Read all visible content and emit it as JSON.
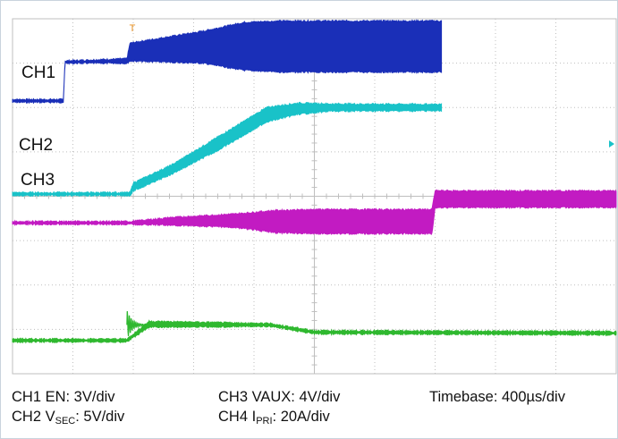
{
  "chart_data": {
    "type": "line",
    "title": "",
    "grid": true,
    "grid_divisions": {
      "x": 10,
      "y": 8
    },
    "x_unit": "div",
    "y_unit": "div",
    "xlim": [
      0,
      10
    ],
    "ylim": [
      0,
      8
    ],
    "trigger_marker": "T",
    "series": [
      {
        "name": "CH1",
        "color": "#1a2fb8",
        "envelope": [
          {
            "x": 0.0,
            "lo": 6.12,
            "hi": 6.18
          },
          {
            "x": 1.6,
            "lo": 6.12,
            "hi": 6.18
          },
          {
            "x": 1.65,
            "lo": 7.0,
            "hi": 7.05
          },
          {
            "x": 3.6,
            "lo": 7.0,
            "hi": 7.1
          },
          {
            "x": 3.7,
            "lo": 7.05,
            "hi": 7.45
          },
          {
            "x": 6.0,
            "lo": 7.0,
            "hi": 7.72
          },
          {
            "x": 7.3,
            "lo": 6.84,
            "hi": 7.92
          },
          {
            "x": 8.5,
            "lo": 6.8,
            "hi": 7.95
          },
          {
            "x": 13.5,
            "lo": 6.8,
            "hi": 7.95
          }
        ]
      },
      {
        "name": "CH2",
        "color": "#19c2c8",
        "envelope": [
          {
            "x": 0.0,
            "lo": 4.02,
            "hi": 4.08
          },
          {
            "x": 3.7,
            "lo": 4.02,
            "hi": 4.08
          },
          {
            "x": 3.8,
            "lo": 4.12,
            "hi": 4.3
          },
          {
            "x": 5.0,
            "lo": 4.5,
            "hi": 4.7
          },
          {
            "x": 6.5,
            "lo": 5.05,
            "hi": 5.35
          },
          {
            "x": 8.0,
            "lo": 5.68,
            "hi": 6.0
          },
          {
            "x": 9.0,
            "lo": 5.85,
            "hi": 6.1
          },
          {
            "x": 10.0,
            "lo": 5.92,
            "hi": 6.08
          },
          {
            "x": 13.5,
            "lo": 5.93,
            "hi": 6.07
          }
        ]
      },
      {
        "name": "CH3",
        "color": "#c21bc2",
        "envelope": [
          {
            "x": 0.0,
            "lo": 3.37,
            "hi": 3.43
          },
          {
            "x": 3.7,
            "lo": 3.37,
            "hi": 3.43
          },
          {
            "x": 5.0,
            "lo": 3.35,
            "hi": 3.52
          },
          {
            "x": 7.0,
            "lo": 3.3,
            "hi": 3.6
          },
          {
            "x": 8.3,
            "lo": 3.18,
            "hi": 3.68
          },
          {
            "x": 9.5,
            "lo": 3.16,
            "hi": 3.7
          },
          {
            "x": 13.2,
            "lo": 3.16,
            "hi": 3.7
          },
          {
            "x": 13.3,
            "lo": 3.75,
            "hi": 4.12
          },
          {
            "x": 19.0,
            "lo": 3.75,
            "hi": 4.12
          }
        ]
      },
      {
        "name": "CH4",
        "color": "#2fb82f",
        "envelope": [
          {
            "x": 0.0,
            "lo": 0.72,
            "hi": 0.78
          },
          {
            "x": 3.6,
            "lo": 0.72,
            "hi": 0.78
          },
          {
            "x": 4.3,
            "lo": 1.05,
            "hi": 1.18
          },
          {
            "x": 8.1,
            "lo": 1.07,
            "hi": 1.13
          },
          {
            "x": 9.5,
            "lo": 0.9,
            "hi": 0.97
          },
          {
            "x": 19.0,
            "lo": 0.88,
            "hi": 0.95
          }
        ]
      }
    ],
    "channel_labels": [
      "CH1",
      "CH2",
      "CH3"
    ],
    "captions": {
      "ch1": "CH1 EN: 3V/div",
      "ch2_prefix": "CH2 V",
      "ch2_sub": "SEC",
      "ch2_suffix": ": 5V/div",
      "ch3": "CH3 VAUX: 4V/div",
      "ch4_prefix": "CH4 I",
      "ch4_sub": "PRI",
      "ch4_suffix": ": 20A/div",
      "timebase": "Timebase: 400µs/div"
    },
    "grid_color": "#bfbfbf",
    "marker_color": "#e89020"
  }
}
